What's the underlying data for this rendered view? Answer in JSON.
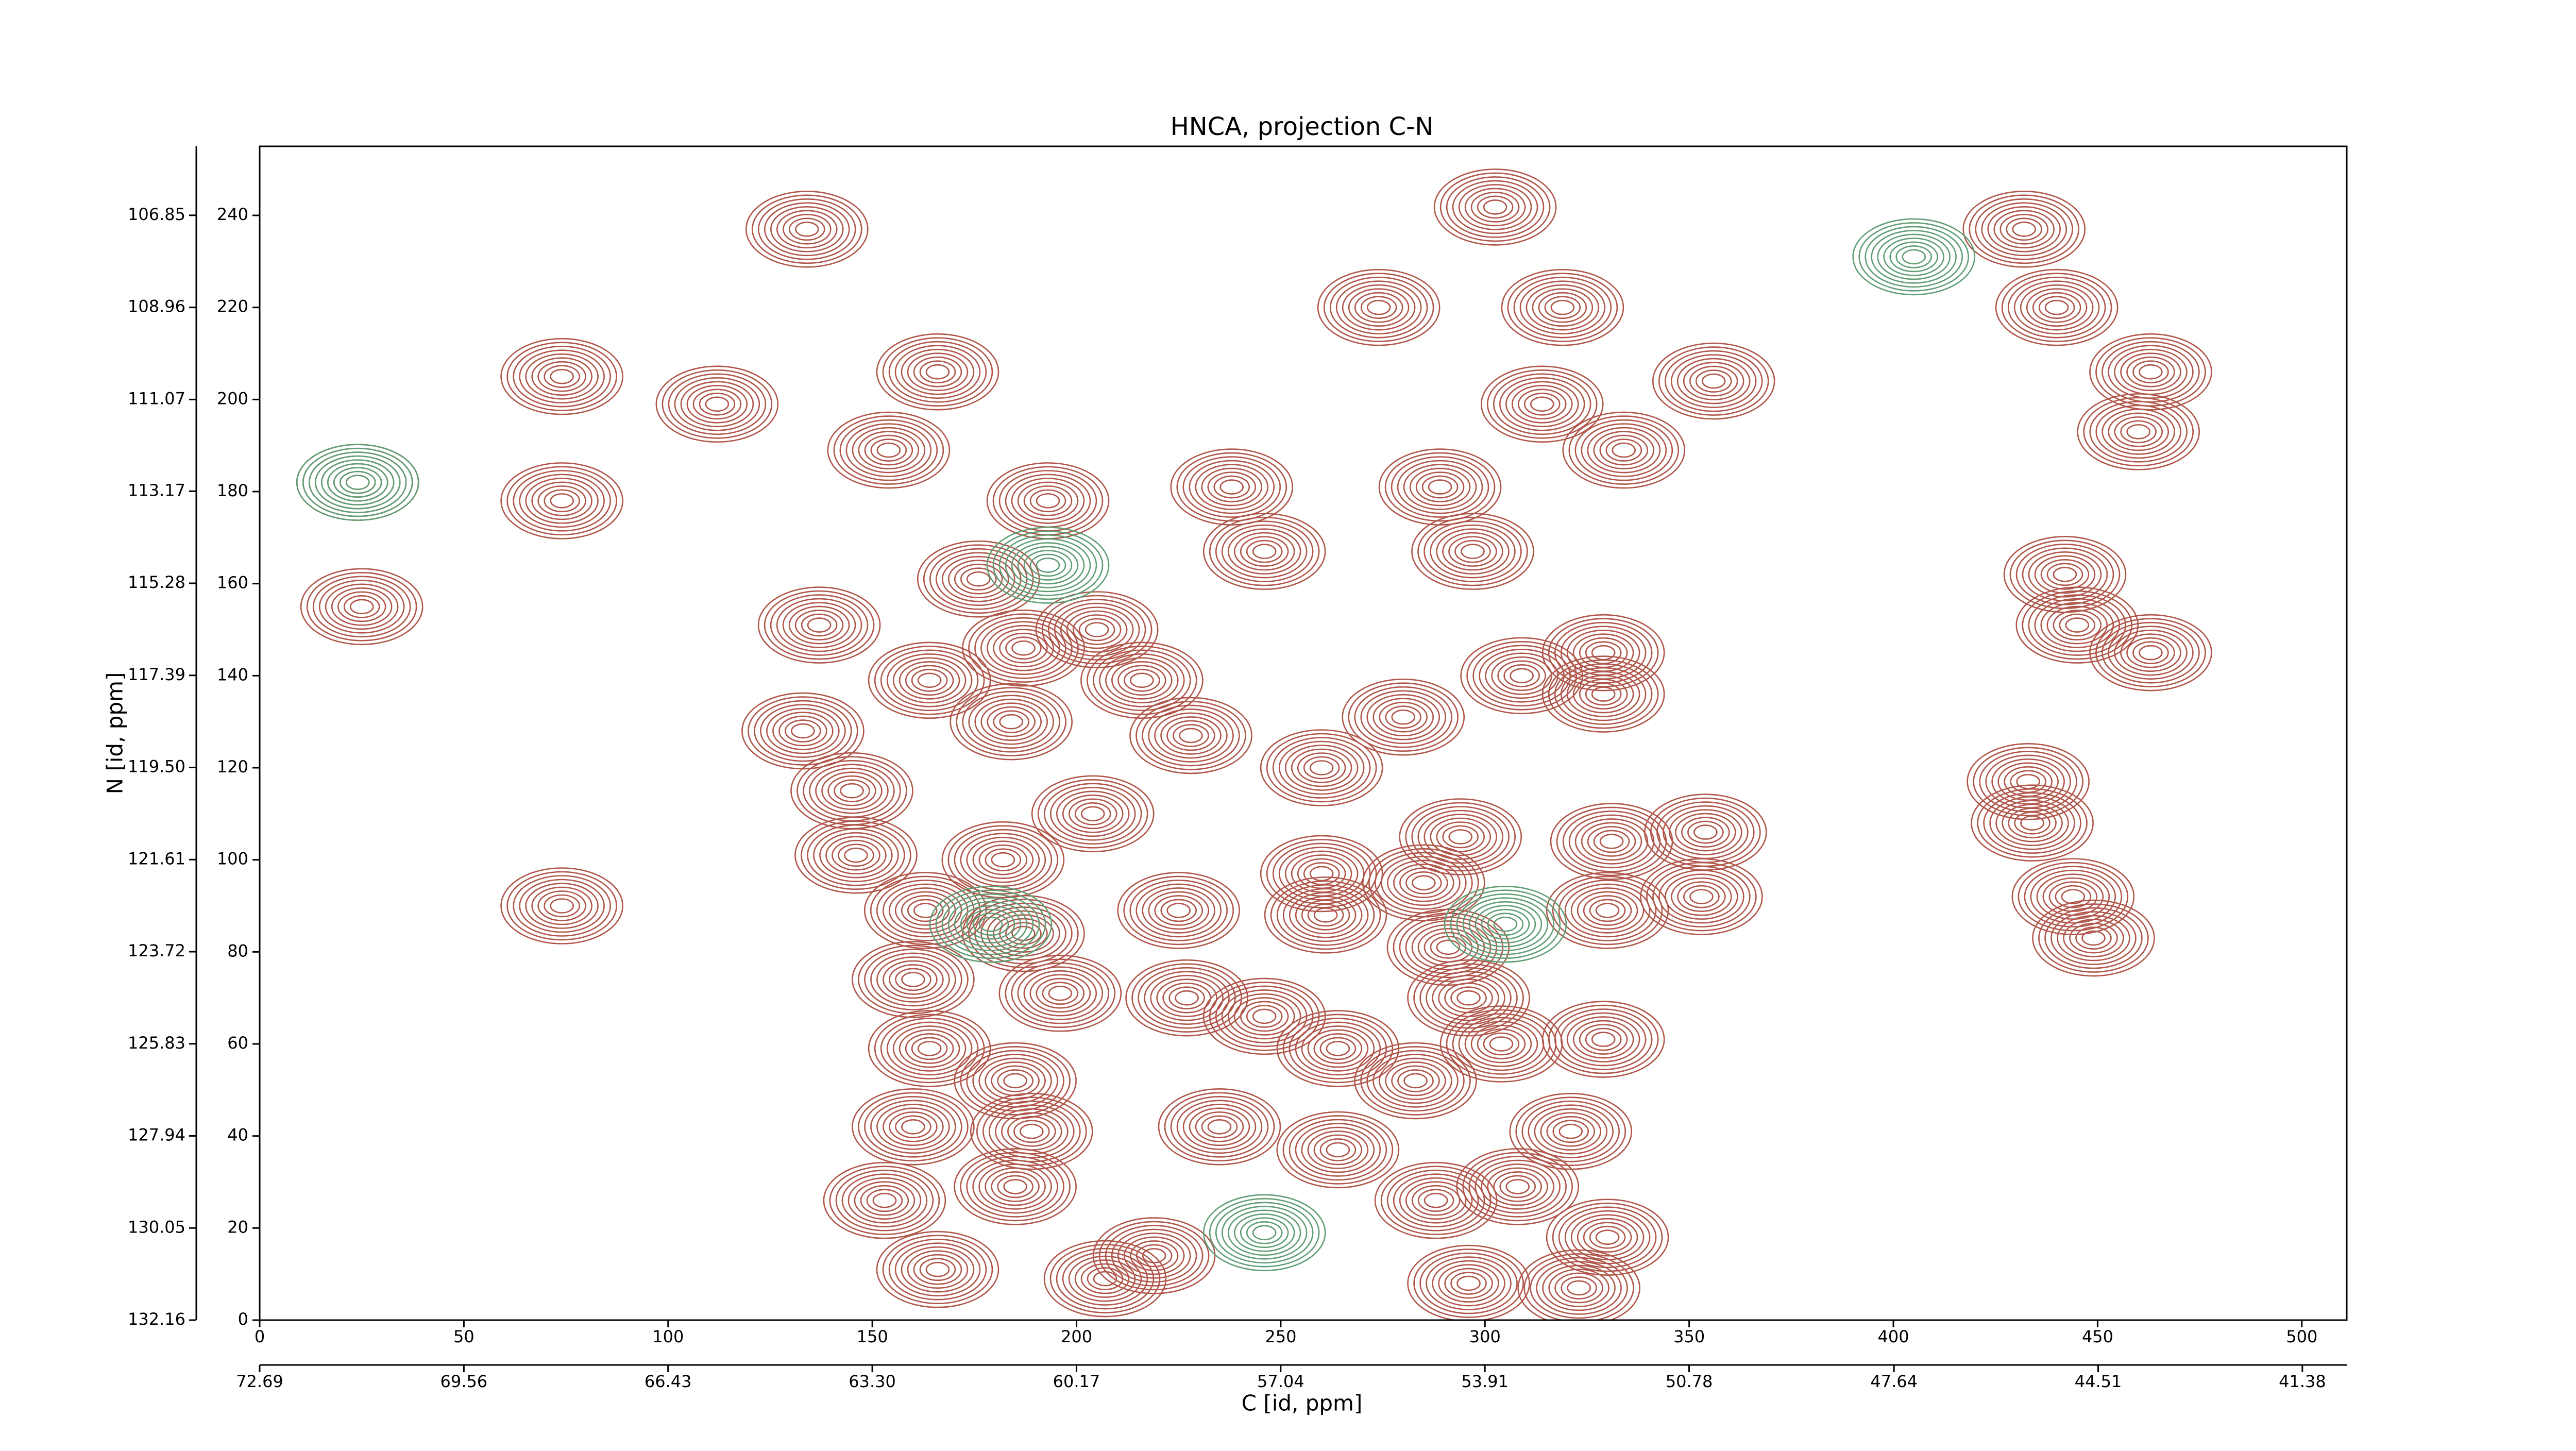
{
  "chart_data": {
    "type": "contour",
    "title": "HNCA, projection C-N",
    "x_label": "C [id, ppm]",
    "y_label": "N [id, ppm]",
    "xlim": [
      0,
      511
    ],
    "xticks": [
      0,
      50,
      100,
      150,
      200,
      250,
      300,
      350,
      400,
      450,
      500
    ],
    "x2lim": [
      72.69,
      40.7
    ],
    "x2ticks": [
      72.69,
      69.56,
      66.43,
      {
        "value": 63.3,
        "label": "63.30"
      },
      60.17,
      57.04,
      53.91,
      50.78,
      47.64,
      44.51,
      41.38
    ],
    "ylim": [
      0,
      255
    ],
    "yticks": [
      0,
      20,
      40,
      60,
      80,
      100,
      120,
      140,
      160,
      180,
      200,
      220,
      240
    ],
    "y2lim": [
      132.16,
      105.27
    ],
    "y2ticks": [
      132.16,
      130.05,
      127.94,
      125.83,
      123.72,
      121.61,
      {
        "value": 119.5,
        "label": "119.50"
      },
      117.39,
      115.28,
      113.17,
      111.07,
      108.96,
      106.85
    ],
    "series": [
      {
        "color": "#b0564a",
        "x": [
          134,
          302.5,
          432,
          440,
          319,
          274,
          166,
          112,
          74,
          154,
          74,
          24,
          193,
          238,
          289,
          314,
          334,
          356,
          460,
          463,
          297,
          246,
          176,
          25,
          137,
          205,
          187,
          442,
          445,
          463,
          216,
          164,
          309,
          329,
          329,
          280,
          184,
          133,
          228,
          260,
          145,
          433,
          434,
          354,
          294,
          331,
          182,
          204,
          146,
          260,
          285,
          353,
          330,
          74,
          163,
          225,
          449,
          444,
          261,
          187,
          291,
          160,
          196,
          227,
          296,
          246,
          329,
          164,
          264,
          304,
          185,
          283,
          160,
          189,
          235,
          321,
          264,
          288,
          308,
          153,
          185,
          219,
          166,
          207,
          330,
          296,
          323
        ],
        "values": [
          237,
          241.8,
          237,
          220,
          220,
          220,
          206,
          199,
          205,
          189,
          178,
          182,
          178,
          181,
          181,
          199,
          189,
          204,
          193,
          206,
          167,
          167,
          161,
          155,
          151,
          150,
          146,
          162,
          151,
          145,
          139,
          139,
          140,
          145,
          136,
          131,
          130,
          128,
          127,
          120,
          115,
          117,
          108,
          106,
          105,
          104,
          100,
          110,
          101,
          97,
          95,
          92,
          89,
          90,
          89,
          89,
          83,
          92,
          88,
          84,
          81,
          74,
          71,
          70,
          70,
          66,
          61,
          59,
          59,
          60,
          52,
          52,
          42,
          41,
          42,
          41,
          37,
          26,
          29,
          26,
          29,
          14,
          11,
          9,
          18,
          8,
          7
        ]
      },
      {
        "color": "#5f9e74",
        "x": [
          24,
          405,
          193,
          179,
          305,
          246
        ],
        "values": [
          182,
          231,
          164,
          86,
          86,
          19
        ]
      }
    ]
  }
}
